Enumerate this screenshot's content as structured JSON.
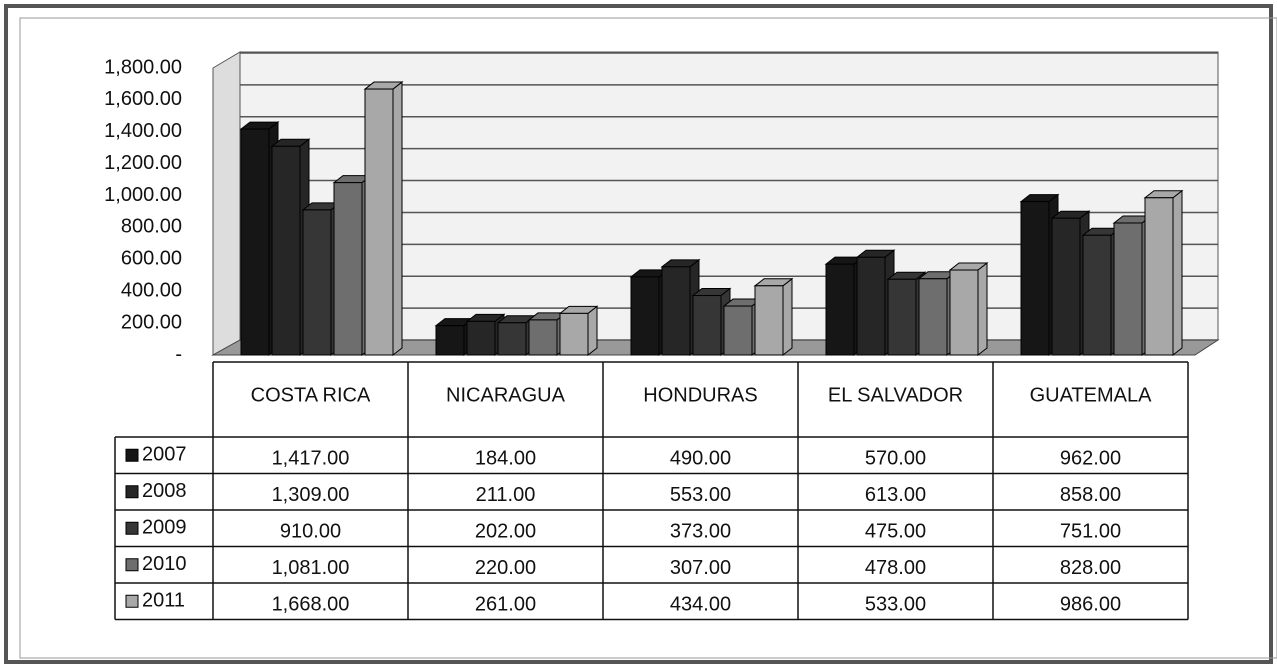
{
  "chart_data": {
    "type": "bar",
    "categories": [
      "COSTA RICA",
      "NICARAGUA",
      "HONDURAS",
      "EL SALVADOR",
      "GUATEMALA"
    ],
    "series": [
      {
        "name": "2007",
        "color": "#161616",
        "values": [
          1417,
          184,
          490,
          570,
          962
        ],
        "value_labels": [
          "1,417.00",
          "184.00",
          "490.00",
          "570.00",
          "962.00"
        ]
      },
      {
        "name": "2008",
        "color": "#262626",
        "values": [
          1309,
          211,
          553,
          613,
          858
        ],
        "value_labels": [
          "1,309.00",
          "211.00",
          "553.00",
          "613.00",
          "858.00"
        ]
      },
      {
        "name": "2009",
        "color": "#363636",
        "values": [
          910,
          202,
          373,
          475,
          751
        ],
        "value_labels": [
          "910.00",
          "202.00",
          "373.00",
          "475.00",
          "751.00"
        ]
      },
      {
        "name": "2010",
        "color": "#6e6e6e",
        "values": [
          1081,
          220,
          307,
          478,
          828
        ],
        "value_labels": [
          "1,081.00",
          "220.00",
          "307.00",
          "478.00",
          "828.00"
        ]
      },
      {
        "name": "2011",
        "color": "#a8a8a8",
        "values": [
          1668,
          261,
          434,
          533,
          986
        ],
        "value_labels": [
          "1,668.00",
          "261.00",
          "434.00",
          "533.00",
          "986.00"
        ]
      }
    ],
    "ylim": [
      0,
      1800
    ],
    "yticks": [
      {
        "value": 0,
        "label": "-"
      },
      {
        "value": 200,
        "label": "200.00"
      },
      {
        "value": 400,
        "label": "400.00"
      },
      {
        "value": 600,
        "label": "600.00"
      },
      {
        "value": 800,
        "label": "800.00"
      },
      {
        "value": 1000,
        "label": "1,000.00"
      },
      {
        "value": 1200,
        "label": "1,200.00"
      },
      {
        "value": 1400,
        "label": "1,400.00"
      },
      {
        "value": 1600,
        "label": "1,600.00"
      },
      {
        "value": 1800,
        "label": "1,800.00"
      }
    ],
    "grid": true
  }
}
